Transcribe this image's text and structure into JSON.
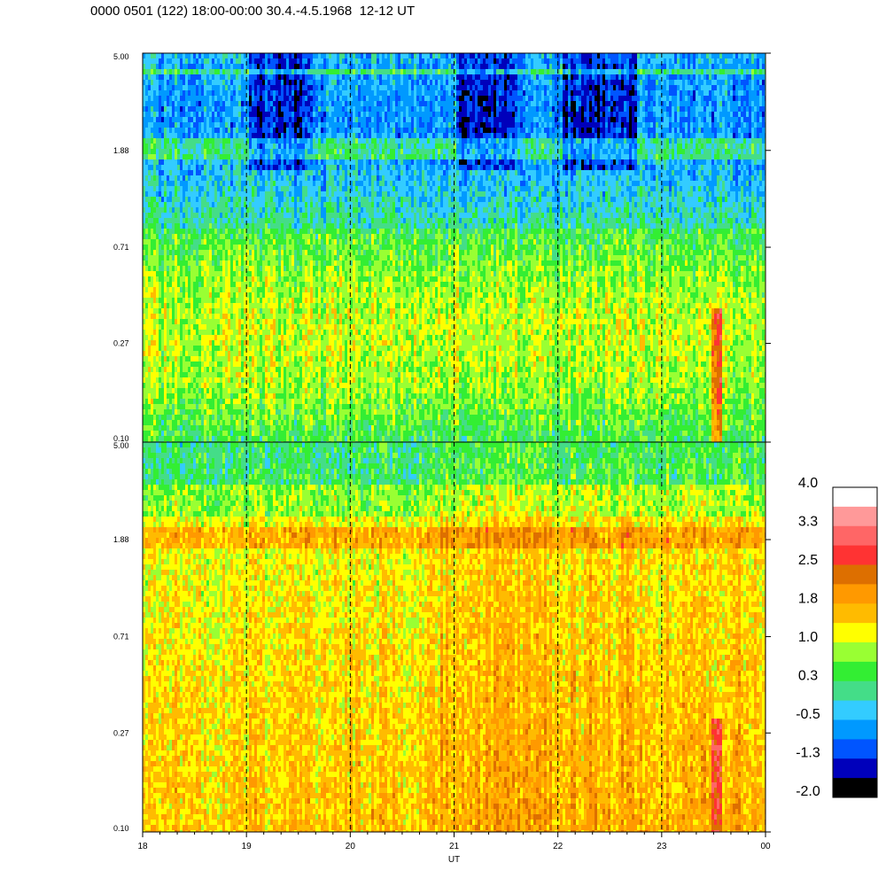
{
  "title": "0000 0501 (122) 18:00-00:00 30.4.-4.5.1968  12-12 UT",
  "chart_data": [
    {
      "type": "heatmap",
      "panel": "upper",
      "x_ticks": [
        "18",
        "19",
        "20",
        "21",
        "22",
        "23",
        "00"
      ],
      "xlim": [
        18,
        24
      ],
      "y_ticks": [
        "0.10",
        "0.27",
        "0.71",
        "1.88",
        "5.00"
      ],
      "ylim": [
        0.1,
        5.0
      ],
      "y_scale": "log",
      "dashed_hour_lines": [
        19,
        20,
        21,
        22,
        23
      ],
      "dominant_levels": [
        "0.3",
        "1.0"
      ],
      "features": [
        "lower values (-0.5 to -1.3) near top frequencies around 19, 21 and 22 UT",
        "orange streak near 23.5 UT at low frequency"
      ]
    },
    {
      "type": "heatmap",
      "panel": "lower",
      "x_ticks": [
        "18",
        "19",
        "20",
        "21",
        "22",
        "23",
        "00"
      ],
      "xlim": [
        18,
        24
      ],
      "y_ticks": [
        "0.10",
        "0.27",
        "0.71",
        "1.88",
        "5.00"
      ],
      "ylim": [
        0.1,
        5.0
      ],
      "y_scale": "log",
      "xlabel": "UT",
      "dashed_hour_lines": [
        19,
        20,
        21,
        22,
        23
      ],
      "dominant_levels": [
        "1.0",
        "1.8",
        "2.5"
      ],
      "features": [
        "band near 1.88",
        "red streak near 23.5 UT at low frequency"
      ]
    }
  ],
  "colorbar": {
    "labels": [
      "4.0",
      "3.3",
      "2.5",
      "1.8",
      "1.0",
      "0.3",
      "-0.5",
      "-1.3",
      "-2.0"
    ],
    "colors_top_to_bottom": [
      "#ffffff",
      "#ff9999",
      "#ff6666",
      "#ff3333",
      "#dd6f00",
      "#ff9900",
      "#ffbb00",
      "#ffff00",
      "#99ff33",
      "#33ee33",
      "#44dd88",
      "#33ccff",
      "#0099ff",
      "#0055ff",
      "#0000bb",
      "#000000"
    ]
  }
}
